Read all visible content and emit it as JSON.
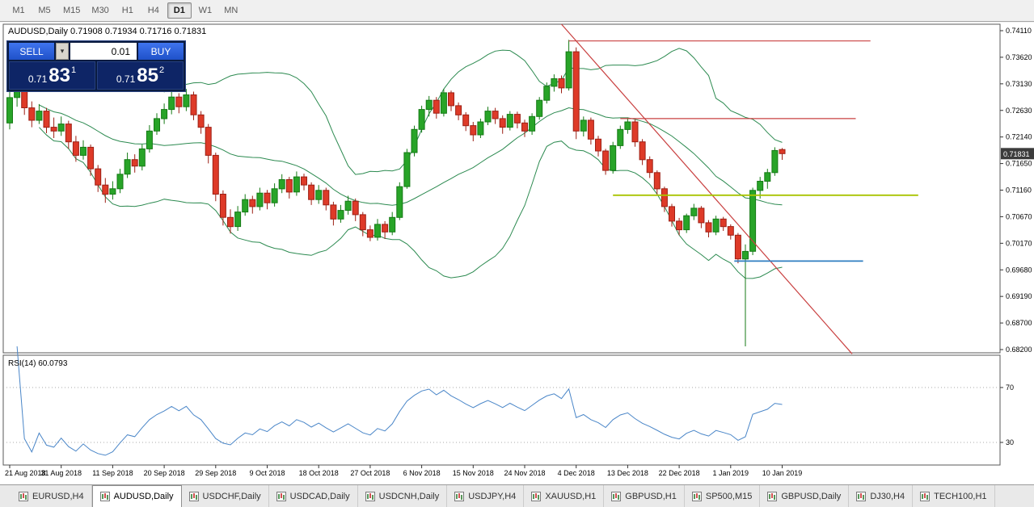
{
  "toolbar": {
    "timeframes": [
      {
        "label": "M1"
      },
      {
        "label": "M5"
      },
      {
        "label": "M15"
      },
      {
        "label": "M30"
      },
      {
        "label": "H1"
      },
      {
        "label": "H4"
      },
      {
        "label": "D1",
        "active": true
      },
      {
        "label": "W1"
      },
      {
        "label": "MN"
      }
    ]
  },
  "trade_panel": {
    "sell_label": "SELL",
    "buy_label": "BUY",
    "volume": "0.01",
    "dropdown_glyph": "▾",
    "sell_price_main": "0.71",
    "sell_price_big": "83",
    "sell_price_sup": "1",
    "buy_price_main": "0.71",
    "buy_price_big": "85",
    "buy_price_sup": "2"
  },
  "colors": {
    "bull": "#28a428",
    "bull_border": "#157a15",
    "bear": "#de3a28",
    "bear_border": "#9c2015",
    "bollinger": "#2c8a50",
    "trendline": "#c94040",
    "hline_red": "#c94040",
    "hline_olive": "#a8c400",
    "hline_blue": "#2f7ec1",
    "rsi_line": "#4a86c8",
    "axis_text": "#000000",
    "panel_border": "#5a5a5a",
    "badge_bg": "#3c3c3c",
    "badge_text": "#ffffff",
    "level_dash": "#aaaaaa"
  },
  "chart_data": {
    "type": "candlestick",
    "title": "AUDUSD,Daily 0.71908 0.71934 0.71716 0.71831",
    "symbol": "AUDUSD",
    "timeframe": "Daily",
    "last_bar": {
      "open": "0.71908",
      "high": "0.71934",
      "low": "0.71716",
      "close": "0.71831"
    },
    "current_price": "0.71831",
    "price_axis_labels": [
      "0.74110",
      "0.73620",
      "0.73130",
      "0.72630",
      "0.72140",
      "0.71650",
      "0.71160",
      "0.70670",
      "0.70170",
      "0.69680",
      "0.69190",
      "0.68700",
      "0.68200"
    ],
    "price_range": {
      "top": 0.7411,
      "bottom": 0.682
    },
    "date_labels": [
      "21 Aug 2018",
      "31 Aug 2018",
      "11 Sep 2018",
      "20 Sep 2018",
      "29 Sep 2018",
      "9 Oct 2018",
      "18 Oct 2018",
      "27 Oct 2018",
      "6 Nov 2018",
      "15 Nov 2018",
      "24 Nov 2018",
      "4 Dec 2018",
      "13 Dec 2018",
      "22 Dec 2018",
      "1 Jan 2019",
      "10 Jan 2019"
    ],
    "label_every": 7,
    "candles": [
      [
        0.724,
        0.731,
        0.7228,
        0.7287
      ],
      [
        0.7287,
        0.7318,
        0.727,
        0.7305
      ],
      [
        0.7305,
        0.7312,
        0.7255,
        0.7268
      ],
      [
        0.7268,
        0.728,
        0.7232,
        0.7245
      ],
      [
        0.7245,
        0.7275,
        0.7238,
        0.7262
      ],
      [
        0.7262,
        0.7268,
        0.7221,
        0.7232
      ],
      [
        0.7232,
        0.725,
        0.7212,
        0.7225
      ],
      [
        0.7225,
        0.7252,
        0.7216,
        0.7238
      ],
      [
        0.7238,
        0.7244,
        0.7192,
        0.7205
      ],
      [
        0.7205,
        0.7216,
        0.7168,
        0.718
      ],
      [
        0.718,
        0.7208,
        0.7172,
        0.7195
      ],
      [
        0.7195,
        0.72,
        0.7142,
        0.7155
      ],
      [
        0.7155,
        0.7162,
        0.7112,
        0.7125
      ],
      [
        0.7125,
        0.7138,
        0.7092,
        0.7108
      ],
      [
        0.7108,
        0.7132,
        0.7098,
        0.7118
      ],
      [
        0.7118,
        0.7155,
        0.711,
        0.7145
      ],
      [
        0.7145,
        0.7185,
        0.7138,
        0.7172
      ],
      [
        0.7172,
        0.7182,
        0.7148,
        0.716
      ],
      [
        0.716,
        0.72,
        0.7152,
        0.7192
      ],
      [
        0.7192,
        0.7236,
        0.7185,
        0.7225
      ],
      [
        0.7225,
        0.7258,
        0.7218,
        0.7248
      ],
      [
        0.7248,
        0.7276,
        0.7238,
        0.7265
      ],
      [
        0.7265,
        0.7298,
        0.7256,
        0.7288
      ],
      [
        0.7288,
        0.7295,
        0.7258,
        0.727
      ],
      [
        0.727,
        0.7303,
        0.7262,
        0.7292
      ],
      [
        0.7292,
        0.7298,
        0.7245,
        0.7255
      ],
      [
        0.7255,
        0.7262,
        0.722,
        0.7232
      ],
      [
        0.7232,
        0.7238,
        0.7165,
        0.718
      ],
      [
        0.718,
        0.7185,
        0.7095,
        0.7108
      ],
      [
        0.7108,
        0.7115,
        0.705,
        0.7065
      ],
      [
        0.7065,
        0.708,
        0.7035,
        0.7048
      ],
      [
        0.7048,
        0.7086,
        0.704,
        0.7075
      ],
      [
        0.7075,
        0.7108,
        0.7068,
        0.7098
      ],
      [
        0.7098,
        0.7105,
        0.7072,
        0.7085
      ],
      [
        0.7085,
        0.712,
        0.7078,
        0.711
      ],
      [
        0.711,
        0.7116,
        0.708,
        0.7092
      ],
      [
        0.7092,
        0.7128,
        0.7085,
        0.7118
      ],
      [
        0.7118,
        0.7145,
        0.711,
        0.7135
      ],
      [
        0.7135,
        0.714,
        0.71,
        0.7112
      ],
      [
        0.7112,
        0.715,
        0.7105,
        0.714
      ],
      [
        0.714,
        0.7146,
        0.7115,
        0.7125
      ],
      [
        0.7125,
        0.713,
        0.7088,
        0.7098
      ],
      [
        0.7098,
        0.7125,
        0.709,
        0.7115
      ],
      [
        0.7115,
        0.712,
        0.7078,
        0.7088
      ],
      [
        0.7088,
        0.7094,
        0.705,
        0.7062
      ],
      [
        0.7062,
        0.7088,
        0.7055,
        0.7078
      ],
      [
        0.7078,
        0.7105,
        0.707,
        0.7095
      ],
      [
        0.7095,
        0.71,
        0.7058,
        0.707
      ],
      [
        0.707,
        0.7075,
        0.703,
        0.7042
      ],
      [
        0.7042,
        0.705,
        0.7021,
        0.7028
      ],
      [
        0.7028,
        0.7062,
        0.7022,
        0.7052
      ],
      [
        0.7052,
        0.7058,
        0.7025,
        0.7038
      ],
      [
        0.7038,
        0.7075,
        0.7032,
        0.7065
      ],
      [
        0.7065,
        0.713,
        0.706,
        0.7122
      ],
      [
        0.7122,
        0.7192,
        0.7118,
        0.7185
      ],
      [
        0.7185,
        0.7235,
        0.7178,
        0.7228
      ],
      [
        0.7228,
        0.7272,
        0.7222,
        0.7265
      ],
      [
        0.7265,
        0.729,
        0.7252,
        0.7282
      ],
      [
        0.7282,
        0.7288,
        0.7248,
        0.7258
      ],
      [
        0.7258,
        0.7303,
        0.7252,
        0.7296
      ],
      [
        0.7296,
        0.73,
        0.7262,
        0.7272
      ],
      [
        0.7272,
        0.7278,
        0.7245,
        0.7255
      ],
      [
        0.7255,
        0.726,
        0.7225,
        0.7235
      ],
      [
        0.7235,
        0.7242,
        0.7206,
        0.7218
      ],
      [
        0.7218,
        0.7248,
        0.7212,
        0.7242
      ],
      [
        0.7242,
        0.727,
        0.7236,
        0.7262
      ],
      [
        0.7262,
        0.7268,
        0.7238,
        0.7248
      ],
      [
        0.7248,
        0.7254,
        0.722,
        0.7232
      ],
      [
        0.7232,
        0.7262,
        0.7226,
        0.7256
      ],
      [
        0.7256,
        0.7261,
        0.723,
        0.724
      ],
      [
        0.724,
        0.7246,
        0.7214,
        0.7225
      ],
      [
        0.7225,
        0.7258,
        0.7218,
        0.7252
      ],
      [
        0.7252,
        0.7288,
        0.7246,
        0.7282
      ],
      [
        0.7282,
        0.7315,
        0.7276,
        0.7308
      ],
      [
        0.7308,
        0.733,
        0.7298,
        0.7322
      ],
      [
        0.7322,
        0.7328,
        0.7295,
        0.7305
      ],
      [
        0.7305,
        0.7394,
        0.73,
        0.7372
      ],
      [
        0.7372,
        0.738,
        0.721,
        0.7225
      ],
      [
        0.7225,
        0.7252,
        0.7215,
        0.7245
      ],
      [
        0.7245,
        0.725,
        0.72,
        0.721
      ],
      [
        0.721,
        0.7216,
        0.7178,
        0.7188
      ],
      [
        0.7188,
        0.7192,
        0.7144,
        0.7152
      ],
      [
        0.7152,
        0.7205,
        0.7146,
        0.7198
      ],
      [
        0.7198,
        0.7235,
        0.7192,
        0.7228
      ],
      [
        0.7228,
        0.725,
        0.722,
        0.7242
      ],
      [
        0.7242,
        0.7246,
        0.7196,
        0.7205
      ],
      [
        0.7205,
        0.721,
        0.7162,
        0.7172
      ],
      [
        0.7172,
        0.7178,
        0.7138,
        0.7148
      ],
      [
        0.7148,
        0.7152,
        0.7108,
        0.7118
      ],
      [
        0.7118,
        0.7122,
        0.7075,
        0.7085
      ],
      [
        0.7085,
        0.709,
        0.7048,
        0.7058
      ],
      [
        0.7058,
        0.7064,
        0.7032,
        0.7042
      ],
      [
        0.7042,
        0.7072,
        0.7036,
        0.7068
      ],
      [
        0.7068,
        0.709,
        0.706,
        0.7082
      ],
      [
        0.7082,
        0.7086,
        0.7045,
        0.7055
      ],
      [
        0.7055,
        0.706,
        0.7028,
        0.7038
      ],
      [
        0.7038,
        0.7068,
        0.7032,
        0.7062
      ],
      [
        0.7062,
        0.7066,
        0.704,
        0.7048
      ],
      [
        0.7048,
        0.7052,
        0.7024,
        0.7032
      ],
      [
        0.7032,
        0.7036,
        0.698,
        0.6988
      ],
      [
        0.6988,
        0.7015,
        0.6826,
        0.7002
      ],
      [
        0.7002,
        0.712,
        0.6995,
        0.7115
      ],
      [
        0.7115,
        0.714,
        0.71,
        0.7132
      ],
      [
        0.7132,
        0.7155,
        0.7118,
        0.7148
      ],
      [
        0.7148,
        0.7195,
        0.7142,
        0.7189
      ],
      [
        0.71908,
        0.71934,
        0.71716,
        0.71831
      ]
    ],
    "overlays": {
      "bollinger_period": 20,
      "trendline": {
        "from_index": 75,
        "from_price": 0.7423,
        "to_index": 114.5,
        "to_price": 0.6812
      },
      "hlines": [
        {
          "price": 0.7392,
          "from_index": 76,
          "to_index": 117,
          "color_key": "hline_red",
          "width": 1.2
        },
        {
          "price": 0.7248,
          "from_index": 83,
          "to_index": 115,
          "color_key": "hline_red",
          "width": 1.2
        },
        {
          "price": 0.7106,
          "from_index": 82,
          "to_index": 123.5,
          "color_key": "hline_olive",
          "width": 1.8
        },
        {
          "price": 0.6984,
          "from_index": 98.5,
          "to_index": 116,
          "color_key": "hline_blue",
          "width": 1.8
        }
      ]
    },
    "rsi": {
      "label": "RSI(14) 60.0793",
      "period": 14,
      "levels": [
        "70",
        "30"
      ]
    }
  },
  "tabs": {
    "items": [
      {
        "label": "EURUSD,H4"
      },
      {
        "label": "AUDUSD,Daily",
        "active": true
      },
      {
        "label": "USDCHF,Daily"
      },
      {
        "label": "USDCAD,Daily"
      },
      {
        "label": "USDCNH,Daily"
      },
      {
        "label": "USDJPY,H4"
      },
      {
        "label": "XAUUSD,H1"
      },
      {
        "label": "GBPUSD,H1"
      },
      {
        "label": "SP500,M15"
      },
      {
        "label": "GBPUSD,Daily"
      },
      {
        "label": "DJ30,H4"
      },
      {
        "label": "TECH100,H1"
      }
    ]
  }
}
